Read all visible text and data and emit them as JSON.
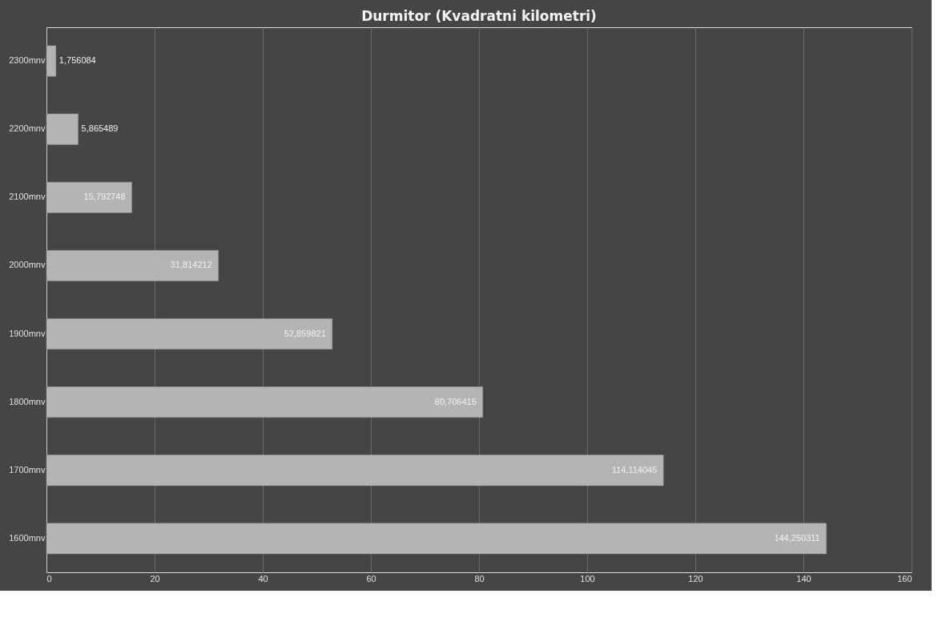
{
  "chart_data": {
    "type": "bar",
    "orientation": "horizontal",
    "title": "Durmitor (Kvadratni kilometri)",
    "categories": [
      "2300mnv",
      "2200mnv",
      "2100mnv",
      "2000mnv",
      "1900mnv",
      "1800mnv",
      "1700mnv",
      "1600mnv"
    ],
    "values": [
      1.756084,
      5.865489,
      15.792748,
      31.814212,
      52.859821,
      80.706415,
      114.114045,
      144.250311
    ],
    "value_labels": [
      "1,756084",
      "5,865489",
      "15,792748",
      "31,814212",
      "52,859821",
      "80,706415",
      "114,114045",
      "144,250311"
    ],
    "color": "#b4b4b4",
    "xlim": [
      0,
      160
    ],
    "xticks": [
      0,
      20,
      40,
      60,
      80,
      100,
      120,
      140,
      160
    ],
    "grid": "x"
  }
}
